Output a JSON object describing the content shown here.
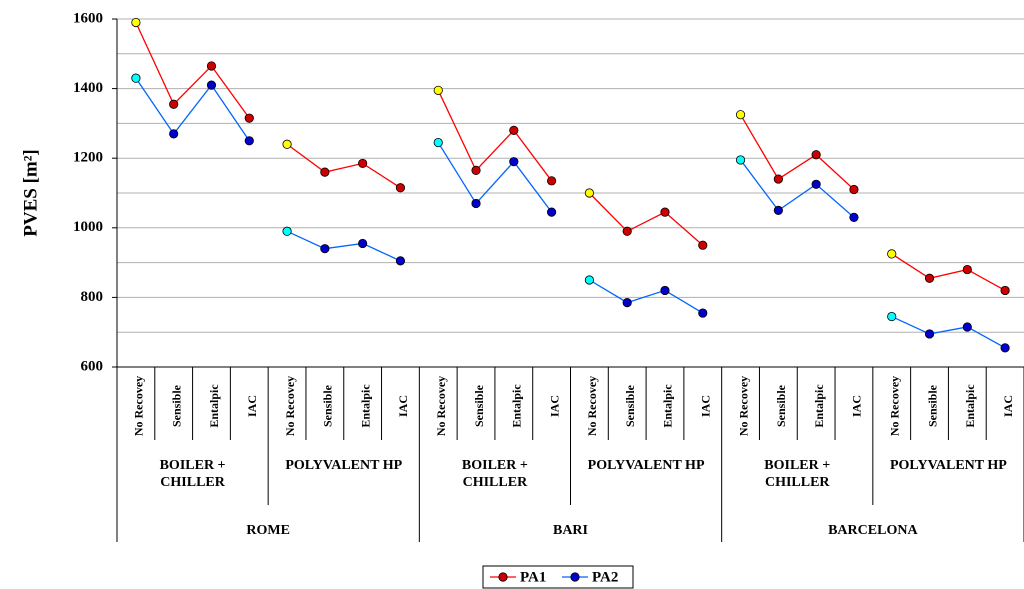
{
  "chart_data": {
    "type": "line",
    "ylabel": "PVES [m²]",
    "categories": [
      "No Recovey",
      "Sensible",
      "Entalpic",
      "IAC",
      "No Recovey",
      "Sensible",
      "Entalpic",
      "IAC",
      "No Recovey",
      "Sensible",
      "Entalpic",
      "IAC",
      "No Recovey",
      "Sensible",
      "Entalpic",
      "IAC",
      "No Recovey",
      "Sensible",
      "Entalpic",
      "IAC",
      "No Recovey",
      "Sensible",
      "Entalpic",
      "IAC"
    ],
    "groups": [
      {
        "label": "BOILER + CHILLER",
        "span": 4
      },
      {
        "label": "POLYVALENT HP",
        "span": 4
      },
      {
        "label": "BOILER + CHILLER",
        "span": 4
      },
      {
        "label": "POLYVALENT HP",
        "span": 4
      },
      {
        "label": "BOILER + CHILLER",
        "span": 4
      },
      {
        "label": "POLYVALENT HP",
        "span": 4
      }
    ],
    "cities": [
      {
        "label": "ROME",
        "span": 8
      },
      {
        "label": "BARI",
        "span": 8
      },
      {
        "label": "BARCELONA",
        "span": 8
      }
    ],
    "series": [
      {
        "name": "PA1",
        "color": "#ff0000",
        "marker_color": "#cc0000",
        "first_marker_color": "#ffff00",
        "values": [
          1590,
          1355,
          1465,
          1315,
          1240,
          1160,
          1185,
          1115,
          1395,
          1165,
          1280,
          1135,
          1100,
          990,
          1045,
          950,
          1325,
          1140,
          1210,
          1110,
          925,
          855,
          880,
          820
        ]
      },
      {
        "name": "PA2",
        "color": "#0066ff",
        "marker_color": "#0000cc",
        "first_marker_color": "#00ffff",
        "values": [
          1430,
          1270,
          1410,
          1250,
          990,
          940,
          955,
          905,
          1245,
          1070,
          1190,
          1045,
          850,
          785,
          820,
          755,
          1195,
          1050,
          1125,
          1030,
          745,
          695,
          715,
          655
        ]
      }
    ],
    "ylim": [
      600,
      1600
    ],
    "yticks": [
      600,
      800,
      1000,
      1200,
      1400,
      1600
    ],
    "minor_grid": [
      700,
      900,
      1100,
      1300,
      1500
    ],
    "grid": true,
    "legend": "bottom"
  }
}
